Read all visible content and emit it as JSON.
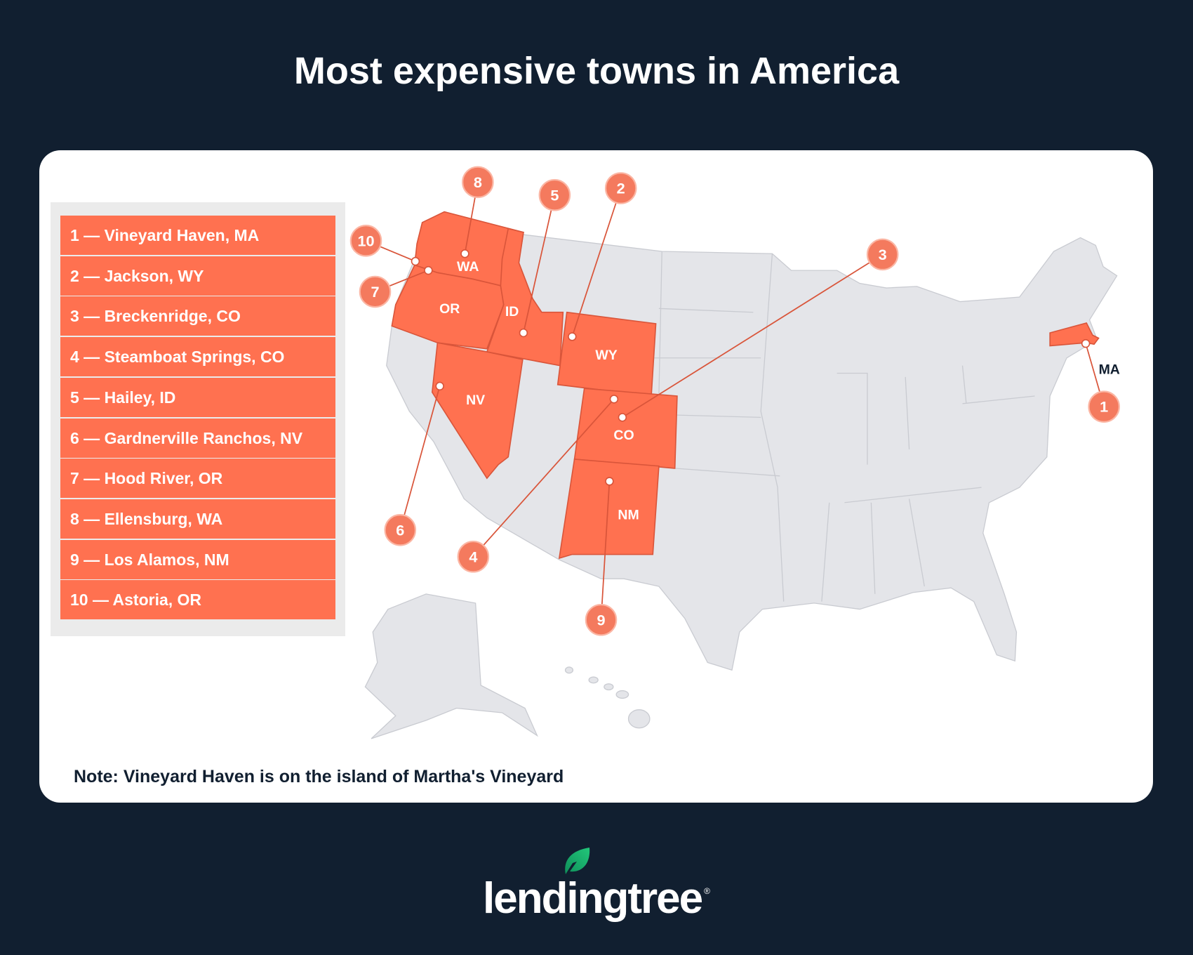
{
  "title": "Most expensive towns in America",
  "legend": [
    {
      "rank": "1",
      "label": "1 — Vineyard Haven, MA"
    },
    {
      "rank": "2",
      "label": "2 — Jackson, WY"
    },
    {
      "rank": "3",
      "label": "3 — Breckenridge, CO"
    },
    {
      "rank": "4",
      "label": "4 — Steamboat Springs, CO"
    },
    {
      "rank": "5",
      "label": "5 — Hailey, ID"
    },
    {
      "rank": "6",
      "label": "6 — Gardnerville Ranchos, NV"
    },
    {
      "rank": "7",
      "label": "7 — Hood River, OR"
    },
    {
      "rank": "8",
      "label": "8 — Ellensburg, WA"
    },
    {
      "rank": "9",
      "label": "9 — Los Alamos, NM"
    },
    {
      "rank": "10",
      "label": "10 — Astoria, OR"
    }
  ],
  "state_labels": [
    "WA",
    "OR",
    "ID",
    "NV",
    "WY",
    "CO",
    "NM",
    "MA"
  ],
  "highlighted_states": [
    "WA",
    "OR",
    "ID",
    "NV",
    "WY",
    "CO",
    "NM",
    "MA"
  ],
  "note": "Note: Vineyard Haven is on the island of Martha's Vineyard",
  "logo": {
    "text": "lendingtree",
    "registered": "®"
  },
  "colors": {
    "background": "#111f30",
    "highlight": "#ff7150",
    "marker": "#f47a5e",
    "land": "#e4e5e9",
    "leaf": "#1fbf74"
  }
}
